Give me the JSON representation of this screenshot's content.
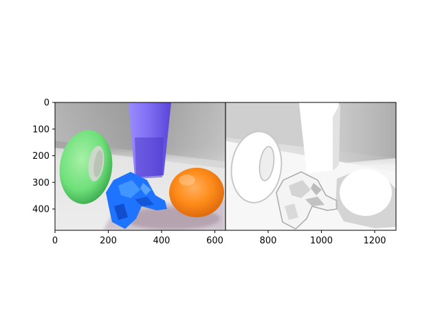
{
  "chart_data": {
    "type": "image",
    "title": "",
    "xlabel": "",
    "ylabel": "",
    "xlim": [
      0,
      1280
    ],
    "ylim": [
      480,
      0
    ],
    "y_inverted": true,
    "x_ticks": [
      0,
      200,
      400,
      600,
      800,
      1000,
      1200
    ],
    "y_ticks": [
      0,
      100,
      200,
      300,
      400
    ],
    "x_tick_labels": [
      "0",
      "200",
      "400",
      "600",
      "800",
      "1000",
      "1200"
    ],
    "y_tick_labels": [
      "0",
      "100",
      "200",
      "300",
      "400"
    ],
    "panels": [
      {
        "name": "rgb-render",
        "x_range": [
          0,
          640
        ],
        "content": "3D scene: green torus, blue crumpled object, purple column, orange sphere"
      },
      {
        "name": "depth-map",
        "x_range": [
          640,
          1280
        ],
        "content": "grayscale map of the same scene"
      }
    ],
    "divider_x": 640,
    "grid": false,
    "legend": "none"
  },
  "colors": {
    "wall_top": "#9a9a9a",
    "floor": "#c9c9c9",
    "torus": "#6fe07a",
    "torus_dark": "#2f9f45",
    "blue_object": "#1e73ff",
    "column": "#7f6dff",
    "orange": "#ff8c1a",
    "depth_bg": "#e6e6e6",
    "depth_light": "#fafafa",
    "depth_dark": "#7a7a7a"
  }
}
